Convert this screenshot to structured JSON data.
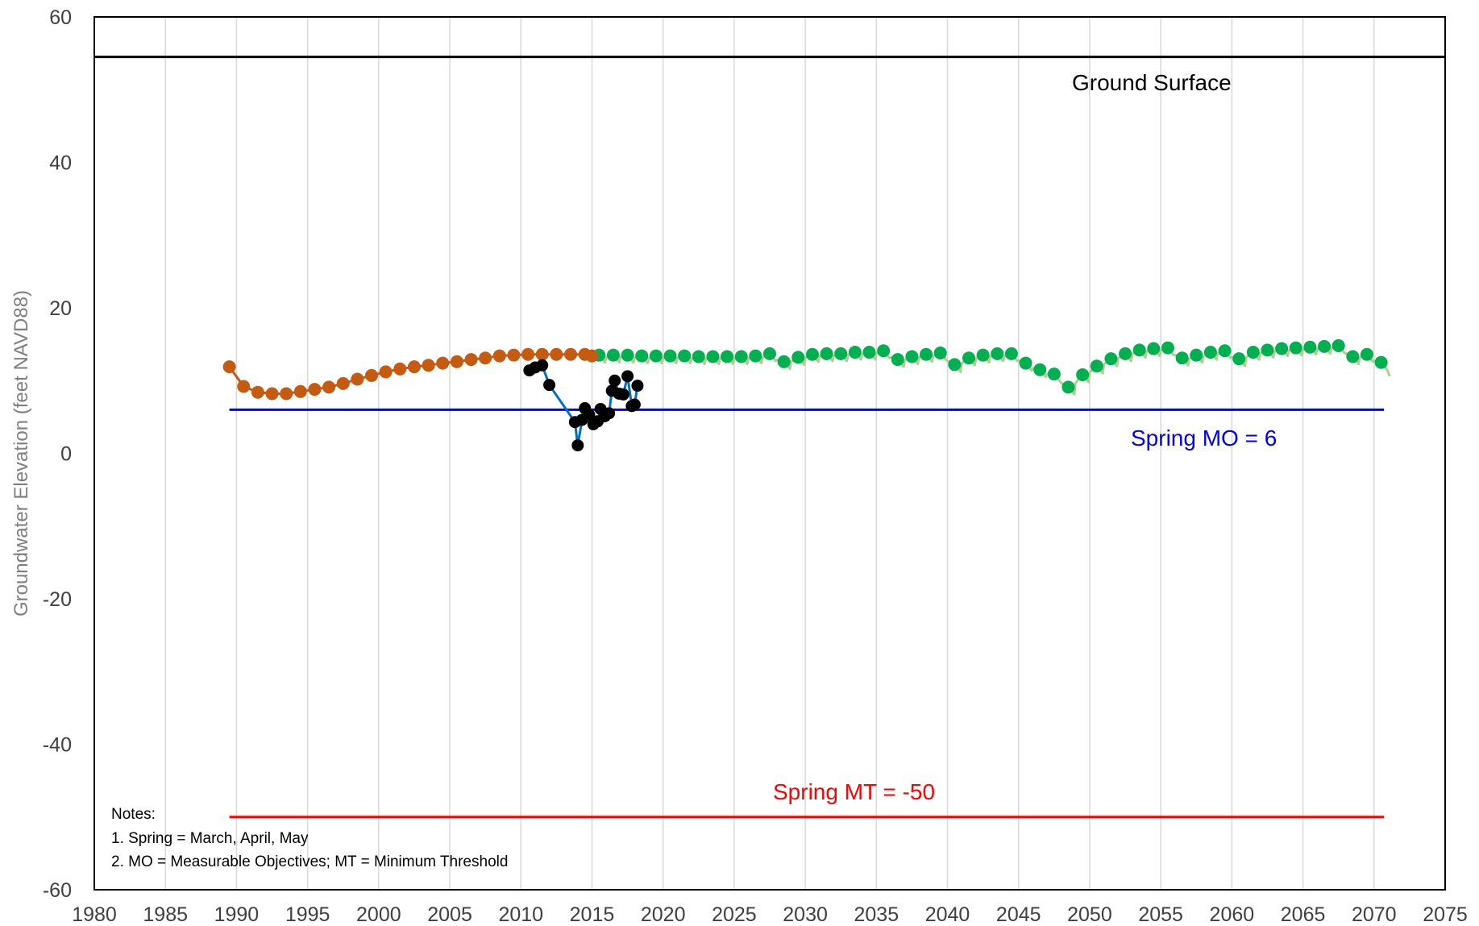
{
  "chart_data": {
    "type": "line",
    "title": "",
    "xlabel": "",
    "ylabel": "Groundwater Elevation (feet NAVD88)",
    "xlim": [
      1980,
      2075
    ],
    "ylim": [
      -60,
      60
    ],
    "x_ticks": [
      "1980",
      "1985",
      "1990",
      "1995",
      "2000",
      "2005",
      "2010",
      "2015",
      "2020",
      "2025",
      "2030",
      "2035",
      "2040",
      "2045",
      "2050",
      "2055",
      "2060",
      "2065",
      "2070",
      "2075"
    ],
    "y_ticks": [
      "60",
      "40",
      "20",
      "0",
      "-20",
      "-40",
      "-60"
    ],
    "grid": "vertical",
    "series": [
      {
        "color": "#c55a11",
        "style": "line-with-markers",
        "points": [
          [
            1989.5,
            11.9
          ],
          [
            1990.5,
            9.2
          ],
          [
            1991.5,
            8.4
          ],
          [
            1992.5,
            8.2
          ],
          [
            1993.5,
            8.2
          ],
          [
            1994.5,
            8.5
          ],
          [
            1995.5,
            8.8
          ],
          [
            1996.5,
            9.1
          ],
          [
            1997.5,
            9.6
          ],
          [
            1998.5,
            10.2
          ],
          [
            1999.5,
            10.7
          ],
          [
            2000.5,
            11.2
          ],
          [
            2001.5,
            11.6
          ],
          [
            2002.5,
            11.9
          ],
          [
            2003.5,
            12.1
          ],
          [
            2004.5,
            12.4
          ],
          [
            2005.5,
            12.6
          ],
          [
            2006.5,
            12.9
          ],
          [
            2007.5,
            13.1
          ],
          [
            2008.5,
            13.4
          ],
          [
            2009.5,
            13.5
          ],
          [
            2010.5,
            13.6
          ],
          [
            2011.5,
            13.6
          ],
          [
            2012.5,
            13.6
          ],
          [
            2013.5,
            13.6
          ],
          [
            2014.5,
            13.6
          ],
          [
            2015.0,
            13.4
          ]
        ]
      },
      {
        "color": "#00b050",
        "style": "markers-with-faint-line",
        "points": [
          [
            2015.5,
            13.5
          ],
          [
            2016.5,
            13.5
          ],
          [
            2017.5,
            13.5
          ],
          [
            2018.5,
            13.4
          ],
          [
            2019.5,
            13.4
          ],
          [
            2020.5,
            13.4
          ],
          [
            2021.5,
            13.4
          ],
          [
            2022.5,
            13.3
          ],
          [
            2023.5,
            13.3
          ],
          [
            2024.5,
            13.3
          ],
          [
            2025.5,
            13.3
          ],
          [
            2026.5,
            13.4
          ],
          [
            2027.5,
            13.7
          ],
          [
            2028.5,
            12.6
          ],
          [
            2029.5,
            13.2
          ],
          [
            2030.5,
            13.6
          ],
          [
            2031.5,
            13.7
          ],
          [
            2032.5,
            13.7
          ],
          [
            2033.5,
            13.9
          ],
          [
            2034.5,
            13.9
          ],
          [
            2035.5,
            14.1
          ],
          [
            2036.5,
            12.9
          ],
          [
            2037.5,
            13.3
          ],
          [
            2038.5,
            13.6
          ],
          [
            2039.5,
            13.8
          ],
          [
            2040.5,
            12.2
          ],
          [
            2041.5,
            13.1
          ],
          [
            2042.5,
            13.5
          ],
          [
            2043.5,
            13.7
          ],
          [
            2044.5,
            13.7
          ],
          [
            2045.5,
            12.4
          ],
          [
            2046.5,
            11.5
          ],
          [
            2047.5,
            10.9
          ],
          [
            2048.5,
            9.1
          ],
          [
            2049.5,
            10.8
          ],
          [
            2050.5,
            12.0
          ],
          [
            2051.5,
            13.0
          ],
          [
            2052.5,
            13.7
          ],
          [
            2053.5,
            14.2
          ],
          [
            2054.5,
            14.4
          ],
          [
            2055.5,
            14.5
          ],
          [
            2056.5,
            13.1
          ],
          [
            2057.5,
            13.5
          ],
          [
            2058.5,
            13.9
          ],
          [
            2059.5,
            14.1
          ],
          [
            2060.5,
            13.0
          ],
          [
            2061.5,
            13.9
          ],
          [
            2062.5,
            14.2
          ],
          [
            2063.5,
            14.4
          ],
          [
            2064.5,
            14.5
          ],
          [
            2065.5,
            14.6
          ],
          [
            2066.5,
            14.7
          ],
          [
            2067.5,
            14.8
          ],
          [
            2068.5,
            13.3
          ],
          [
            2069.5,
            13.6
          ],
          [
            2070.5,
            12.5
          ]
        ]
      },
      {
        "color": "#000000",
        "line_color": "#0070c0",
        "style": "line-with-markers",
        "points": [
          [
            2010.6,
            11.4
          ],
          [
            2011.0,
            11.8
          ],
          [
            2011.5,
            12.1
          ],
          [
            2012.0,
            9.4
          ],
          [
            2013.8,
            4.3
          ],
          [
            2014.0,
            1.1
          ],
          [
            2014.3,
            4.6
          ],
          [
            2014.5,
            6.2
          ],
          [
            2014.8,
            5.3
          ],
          [
            2015.1,
            4.0
          ],
          [
            2015.4,
            4.4
          ],
          [
            2015.6,
            6.1
          ],
          [
            2015.9,
            5.1
          ],
          [
            2016.2,
            5.5
          ],
          [
            2016.4,
            8.6
          ],
          [
            2016.6,
            10.0
          ],
          [
            2016.9,
            8.2
          ],
          [
            2017.2,
            8.1
          ],
          [
            2017.5,
            10.6
          ],
          [
            2017.8,
            6.5
          ],
          [
            2018.0,
            6.7
          ],
          [
            2018.2,
            9.3
          ]
        ]
      }
    ],
    "reference_lines": [
      {
        "label": "Ground Surface",
        "y": 54.5,
        "x_range": [
          1980,
          2075
        ],
        "color": "#000000"
      },
      {
        "label": "Spring MO = 6",
        "y": 6,
        "x_range": [
          1989.5,
          2070.7
        ],
        "color": "#0000ff"
      },
      {
        "label": "Spring MT = -50",
        "y": -50,
        "x_range": [
          1989.5,
          2070.7
        ],
        "color": "#ff0000"
      }
    ],
    "notes": [
      "Notes:",
      "1. Spring = March, April, May",
      "2. MO = Measurable Objectives;  MT = Minimum Threshold"
    ]
  }
}
